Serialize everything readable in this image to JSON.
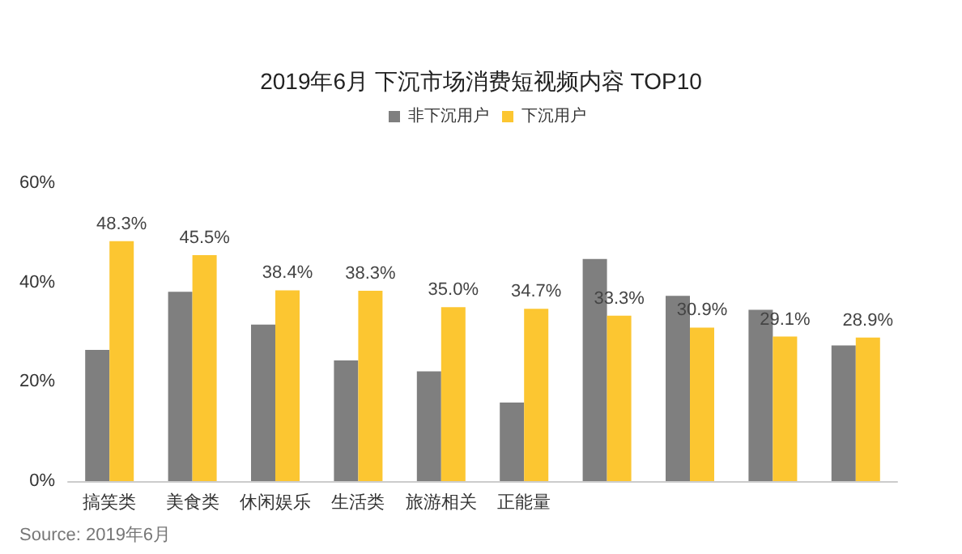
{
  "chart_data": {
    "type": "bar",
    "title": "2019年6月 下沉市场消费短视频内容 TOP10",
    "categories": [
      "搞笑类",
      "美食类",
      "休闲娱乐",
      "生活类",
      "旅游相关",
      "正能量",
      null,
      null,
      null,
      null
    ],
    "series": [
      {
        "name": "非下沉用户",
        "color": "#7f7f7f",
        "values": [
          26.4,
          38.1,
          31.5,
          24.3,
          22.1,
          15.8,
          44.7,
          37.3,
          34.5,
          27.3
        ]
      },
      {
        "name": "下沉用户",
        "color": "#fcc631",
        "values": [
          48.3,
          45.5,
          38.4,
          38.3,
          35.0,
          34.7,
          33.3,
          30.9,
          29.1,
          28.9
        ],
        "value_labels": [
          "48.3%",
          "45.5%",
          "38.4%",
          "38.3%",
          "35.0%",
          "34.7%",
          "33.3%",
          "30.9%",
          "29.1%",
          "28.9%"
        ]
      }
    ],
    "ylim": [
      0,
      60
    ],
    "yticks": [
      {
        "value": 0,
        "label": "0%"
      },
      {
        "value": 20,
        "label": "20%"
      },
      {
        "value": 40,
        "label": "40%"
      },
      {
        "value": 60,
        "label": "60%"
      }
    ],
    "grid": false,
    "legend": "top right",
    "annotations": [
      "Source: 2019年6月"
    ]
  }
}
